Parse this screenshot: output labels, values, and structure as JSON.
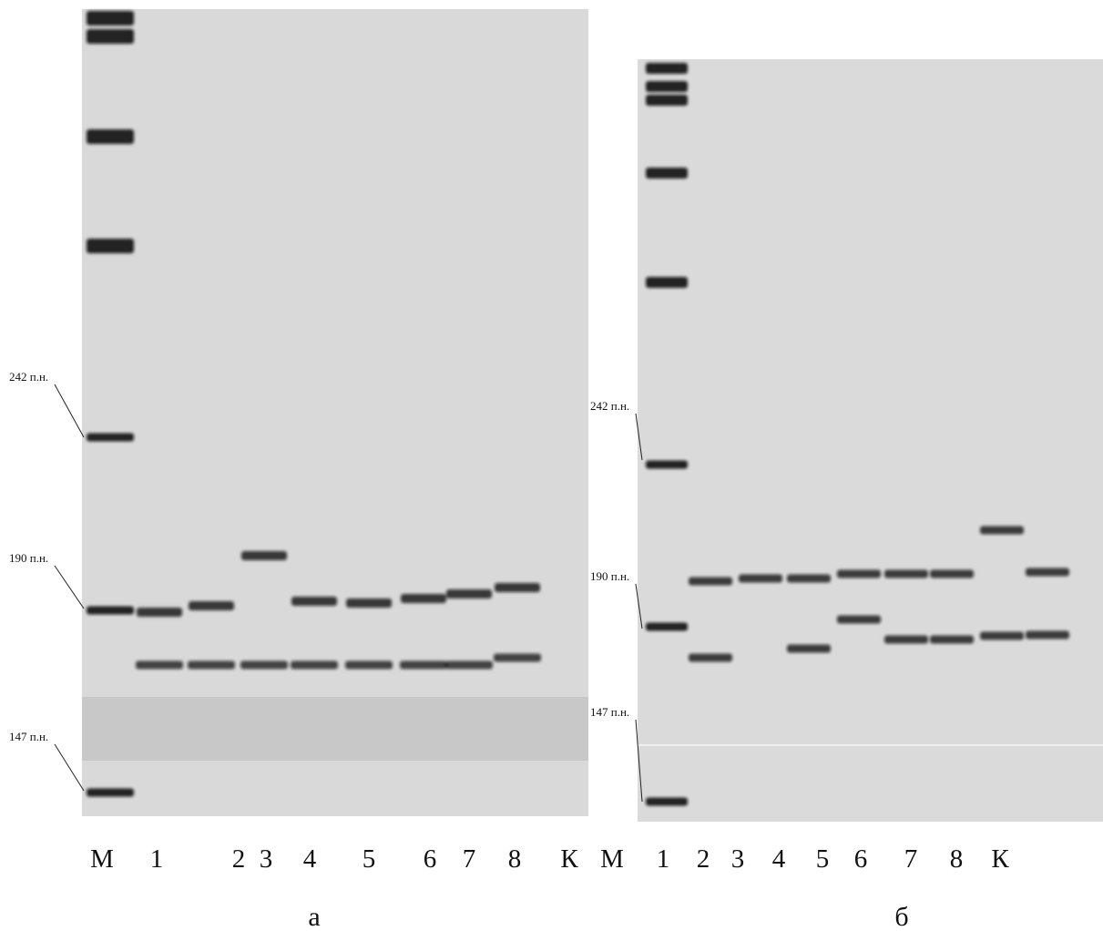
{
  "panels": [
    {
      "caption": "а",
      "lanes": [
        "М",
        "1",
        "2",
        "3",
        "4",
        "5",
        "6",
        "7",
        "8",
        "К"
      ],
      "markers": [
        "242 п.н.",
        "190 п.н.",
        "147 п.н."
      ]
    },
    {
      "caption": "б",
      "lanes": [
        "М",
        "1",
        "2",
        "3",
        "4",
        "5",
        "6",
        "7",
        "8",
        "К"
      ],
      "markers": [
        "242 п.н.",
        "190 п.н.",
        "147 п.н."
      ]
    }
  ]
}
